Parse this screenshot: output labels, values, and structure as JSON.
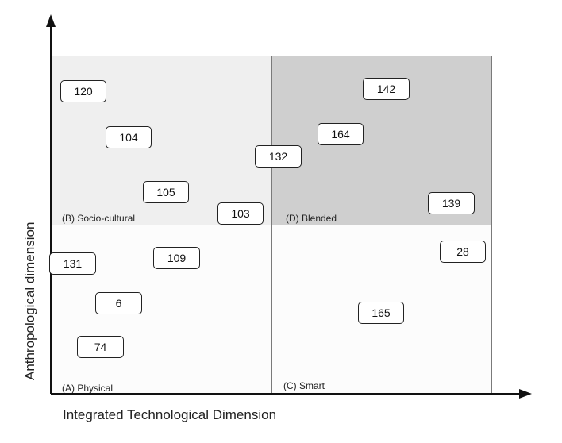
{
  "axes": {
    "x_label": "Integrated Technological Dimension",
    "y_label": "Anthropological dimension"
  },
  "quadrants": [
    {
      "id": "b",
      "label": "(B) Socio-cultural"
    },
    {
      "id": "d",
      "label": "(D) Blended"
    },
    {
      "id": "a",
      "label": "(A) Physical"
    },
    {
      "id": "c",
      "label": "(C) Smart"
    }
  ],
  "items": [
    "120",
    "104",
    "105",
    "103",
    "132",
    "164",
    "142",
    "139",
    "131",
    "109",
    "6",
    "74",
    "28",
    "165"
  ]
}
